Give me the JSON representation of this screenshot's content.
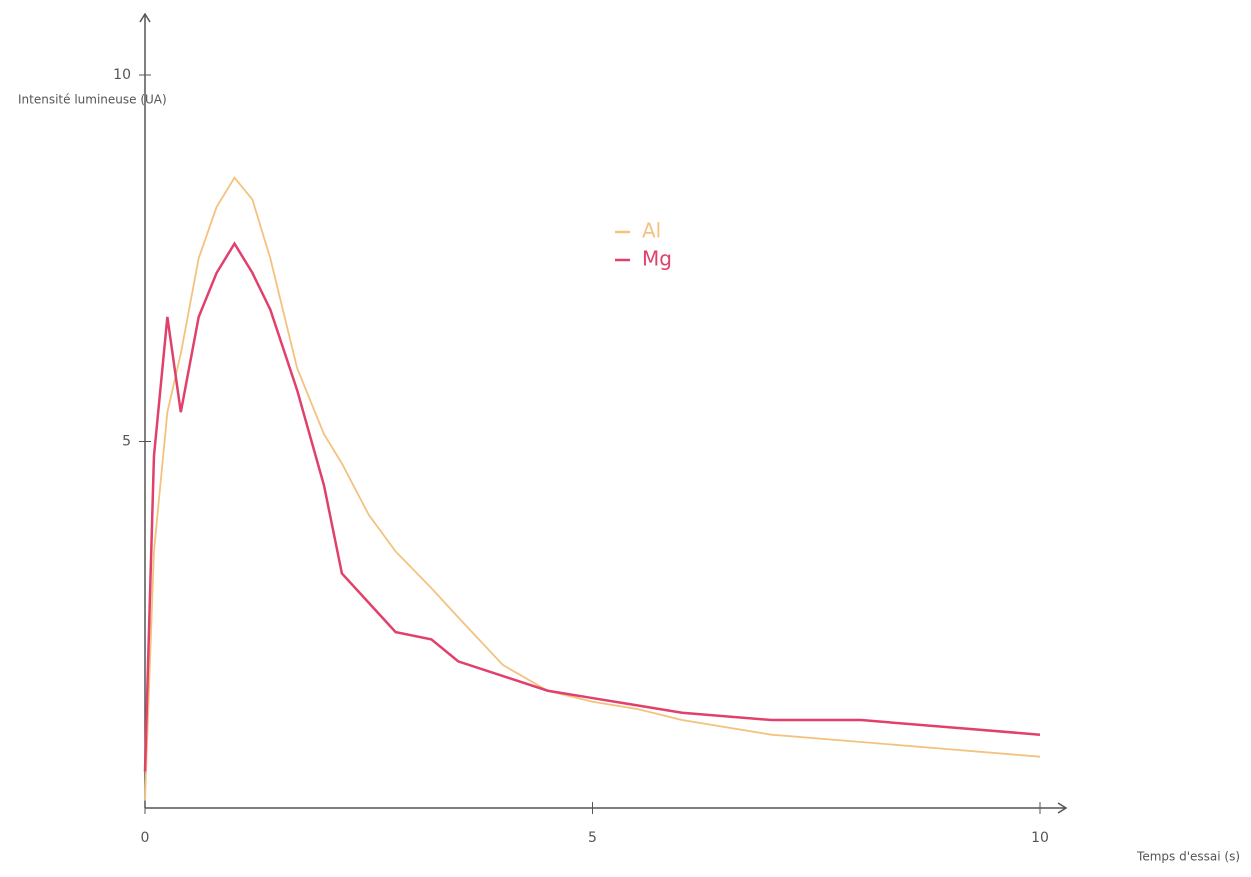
{
  "chart_data": {
    "type": "line",
    "x_label": "Temps d'essai (s)",
    "y_label": "Intensité lumineuse (UA)",
    "x": [
      0,
      0.1,
      0.25,
      0.4,
      0.6,
      0.8,
      1.0,
      1.2,
      1.4,
      1.7,
      2.0,
      2.2,
      2.5,
      2.8,
      3.2,
      3.5,
      4,
      4.5,
      5,
      5.5,
      6,
      7,
      8,
      9,
      10
    ],
    "series": [
      {
        "name": "Al",
        "color": "#f4c27f",
        "values": [
          0.1,
          3.5,
          5.4,
          6.2,
          7.5,
          8.2,
          8.6,
          8.3,
          7.5,
          6.0,
          5.1,
          4.7,
          4.0,
          3.5,
          3.0,
          2.6,
          1.95,
          1.6,
          1.45,
          1.35,
          1.2,
          1.0,
          0.9,
          0.8,
          0.7
        ]
      },
      {
        "name": "Mg",
        "color": "#e0406a",
        "values": [
          0.5,
          4.8,
          6.7,
          5.4,
          6.7,
          7.3,
          7.7,
          7.3,
          6.8,
          5.7,
          4.4,
          3.2,
          2.8,
          2.4,
          2.3,
          2.0,
          1.8,
          1.6,
          1.5,
          1.4,
          1.3,
          1.2,
          1.2,
          1.1,
          1.0
        ]
      }
    ],
    "xlim": [
      0,
      10
    ],
    "xticks": [
      0,
      5,
      10
    ],
    "ylim": [
      0,
      10
    ],
    "yticks": [
      5,
      10
    ],
    "grid": false
  }
}
